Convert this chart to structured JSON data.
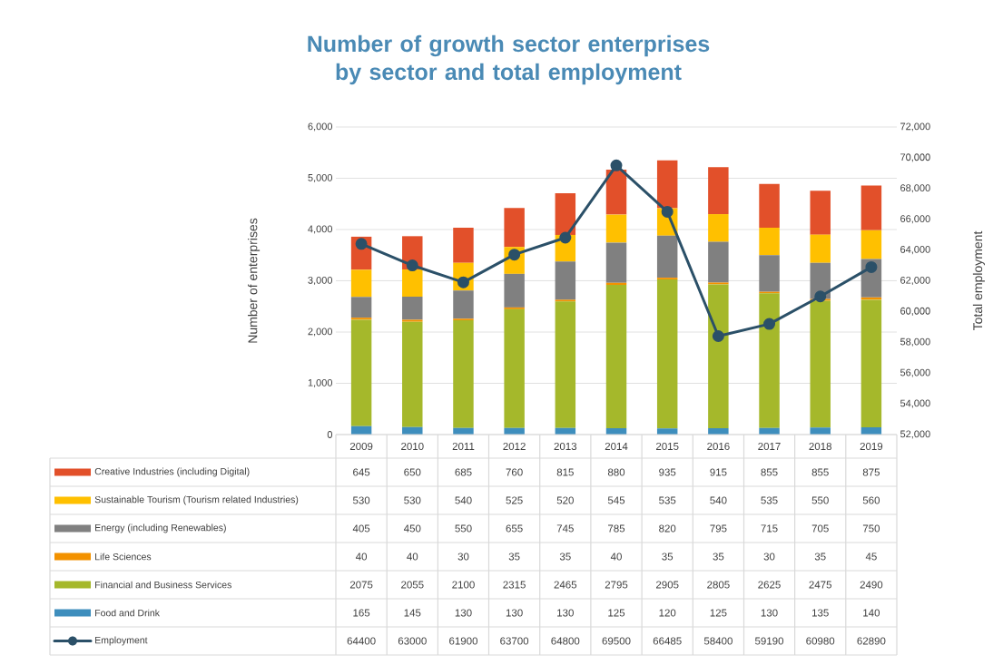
{
  "chart_data": {
    "type": "bar",
    "stacked": true,
    "title": "Number of growth sector enterprises by sector and total employment",
    "ylabel": "Number of enterprises",
    "y2label": "Total employment",
    "categories": [
      "2009",
      "2010",
      "2011",
      "2012",
      "2013",
      "2014",
      "2015",
      "2016",
      "2017",
      "2018",
      "2019"
    ],
    "series": [
      {
        "name": "Food and Drink",
        "color": "#3e8ebd",
        "values": [
          165,
          145,
          130,
          130,
          130,
          125,
          120,
          125,
          130,
          135,
          140
        ]
      },
      {
        "name": "Financial and Business Services",
        "color": "#a5b82b",
        "values": [
          2075,
          2055,
          2100,
          2315,
          2465,
          2795,
          2905,
          2805,
          2625,
          2475,
          2490
        ]
      },
      {
        "name": "Life Sciences",
        "color": "#f39200",
        "values": [
          40,
          40,
          30,
          35,
          35,
          40,
          35,
          35,
          30,
          35,
          45
        ]
      },
      {
        "name": "Energy (including Renewables)",
        "color": "#808080",
        "values": [
          405,
          450,
          550,
          655,
          745,
          785,
          820,
          795,
          715,
          705,
          750
        ]
      },
      {
        "name": "Sustainable Tourism (Tourism related Industries)",
        "color": "#ffc000",
        "values": [
          530,
          530,
          540,
          525,
          520,
          545,
          535,
          540,
          535,
          550,
          560
        ]
      },
      {
        "name": "Creative Industries (including Digital)",
        "color": "#e2502a",
        "values": [
          645,
          650,
          685,
          760,
          815,
          880,
          935,
          915,
          855,
          855,
          875
        ]
      },
      {
        "name": "Employment",
        "color": "#2b5068",
        "type": "line",
        "axis": "y2",
        "values": [
          64400,
          63000,
          61900,
          63700,
          64800,
          69500,
          66485,
          58400,
          59190,
          60980,
          62890
        ]
      }
    ],
    "ylim": [
      0,
      6000
    ],
    "yticks": [
      {
        "value": 0,
        "label": "0"
      },
      {
        "value": 1000,
        "label": "1,000"
      },
      {
        "value": 2000,
        "label": "2,000"
      },
      {
        "value": 3000,
        "label": "3,000"
      },
      {
        "value": 4000,
        "label": "4,000"
      },
      {
        "value": 5000,
        "label": "5,000"
      },
      {
        "value": 6000,
        "label": "6,000"
      }
    ],
    "y2lim": [
      52000,
      72000
    ],
    "y2ticks": [
      {
        "value": 52000,
        "label": "52,000"
      },
      {
        "value": 54000,
        "label": "54,000"
      },
      {
        "value": 56000,
        "label": "56,000"
      },
      {
        "value": 58000,
        "label": "58,000"
      },
      {
        "value": 60000,
        "label": "60,000"
      },
      {
        "value": 62000,
        "label": "62,000"
      },
      {
        "value": 64000,
        "label": "64,000"
      },
      {
        "value": 66000,
        "label": "66,000"
      },
      {
        "value": 68000,
        "label": "68,000"
      },
      {
        "value": 70000,
        "label": "70,000"
      },
      {
        "value": 72000,
        "label": "72,000"
      }
    ],
    "grid": "y",
    "legend": "bottom",
    "data_labels": true,
    "marker": "circle",
    "line_style": "solid"
  }
}
